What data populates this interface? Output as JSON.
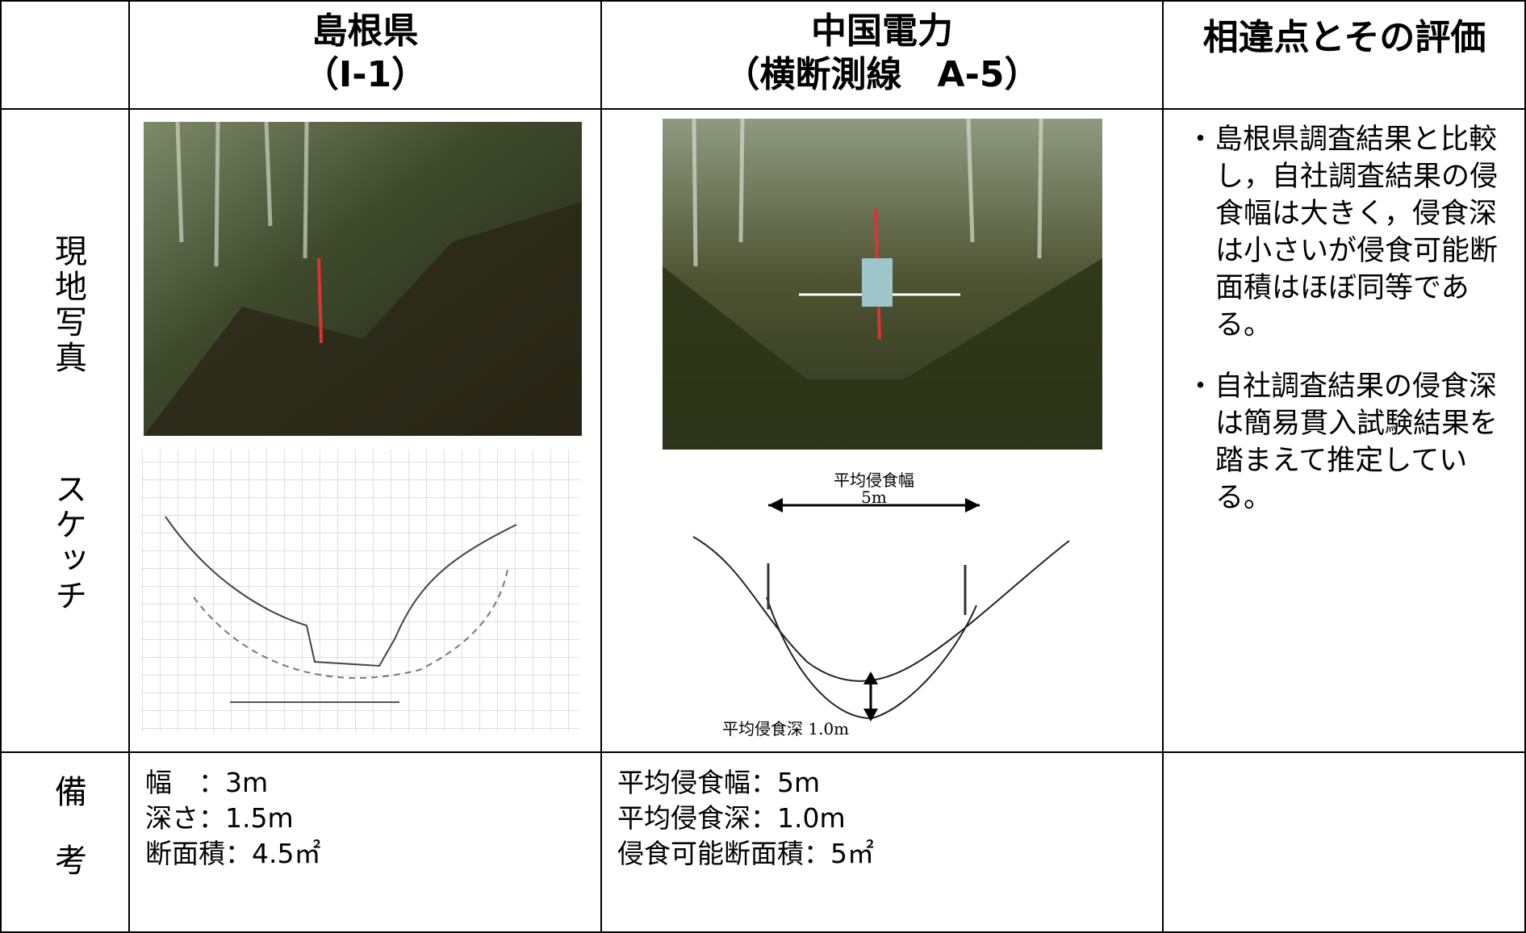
{
  "table": {
    "columns": [
      {
        "name": "島根県",
        "code": "（I-1）"
      },
      {
        "name": "中国電力",
        "code": "（横断測線　A-5）"
      },
      {
        "name": "相違点とその評価"
      }
    ],
    "rows": [
      {
        "label": [
          "現地写真",
          "スケッチ"
        ],
        "chugoku_sketch": {
          "width_label": "平均侵食幅",
          "width_value": "5m",
          "depth_label": "平均侵食深 1.0m"
        },
        "evaluation": [
          "・島根県調査結果と比較し，自社調査結果の侵食幅は大きく，侵食深は小さいが侵食可能断面積はほぼ同等である。",
          "・自社調査結果の侵食深は簡易貫入試験結果を踏まえて推定している。"
        ]
      },
      {
        "label": [
          "備",
          "考"
        ],
        "shimane": [
          "幅　：3m",
          "深さ：1.5m",
          "断面積：4.5㎡"
        ],
        "chugoku": [
          "平均侵食幅：5m",
          "平均侵食深：1.0m",
          "侵食可能断面積：5㎡"
        ]
      }
    ]
  }
}
